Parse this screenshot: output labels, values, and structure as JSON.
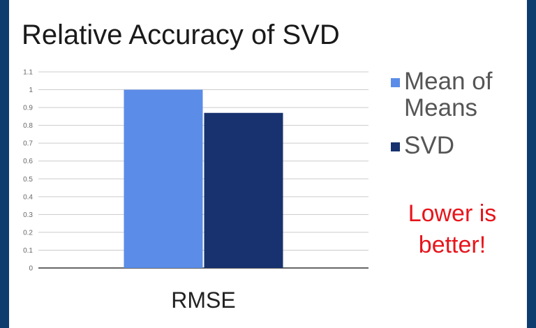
{
  "slide": {
    "title": "Relative Accuracy of SVD",
    "note_line1": "Lower is",
    "note_line2": "better!"
  },
  "colors": {
    "mean_of_means": "#5b8ce8",
    "svd": "#17326e",
    "gridline": "#cccccc",
    "note": "#e8141b",
    "frame": "#0d3c6e"
  },
  "chart_data": {
    "type": "bar",
    "title": "Relative Accuracy of SVD",
    "categories": [
      "RMSE"
    ],
    "series": [
      {
        "name": "Mean of Means",
        "values": [
          1.0
        ],
        "color": "#5b8ce8"
      },
      {
        "name": "SVD",
        "values": [
          0.87
        ],
        "color": "#17326e"
      }
    ],
    "yticks": [
      "0",
      "0.1",
      "0.2",
      "0.3",
      "0.4",
      "0.5",
      "0.6",
      "0.7",
      "0.8",
      "0.9",
      "1",
      "1.1"
    ],
    "ylim": [
      0,
      1.1
    ],
    "xlabel": "",
    "ylabel": "",
    "grid": true,
    "legend_position": "right"
  }
}
